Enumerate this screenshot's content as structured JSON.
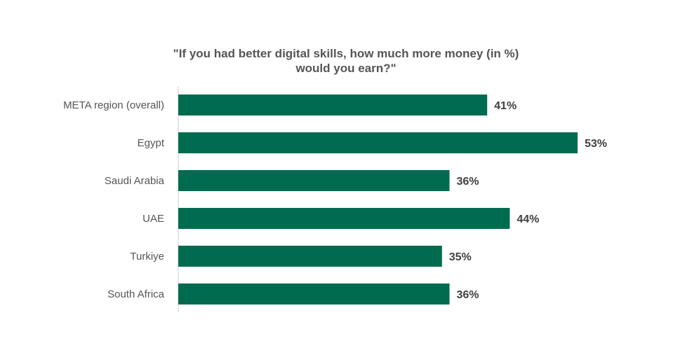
{
  "chart_data": {
    "type": "bar",
    "orientation": "horizontal",
    "title_lines": [
      "\"If you had better digital skills, how much more money (in %)",
      "would you earn?\""
    ],
    "categories": [
      "META region (overall)",
      "Egypt",
      "Saudi Arabia",
      "UAE",
      "Turkiye",
      "South Africa"
    ],
    "values": [
      41,
      53,
      36,
      44,
      35,
      36
    ],
    "value_labels": [
      "41%",
      "53%",
      "36%",
      "44%",
      "35%",
      "36%"
    ],
    "unit": "%",
    "xlim": [
      0,
      53
    ],
    "grid": false,
    "legend": "none",
    "colors": {
      "bar": "#006B4F",
      "axis": "#cfcfcf",
      "category_text": "#555555",
      "value_text": "#404040"
    }
  }
}
